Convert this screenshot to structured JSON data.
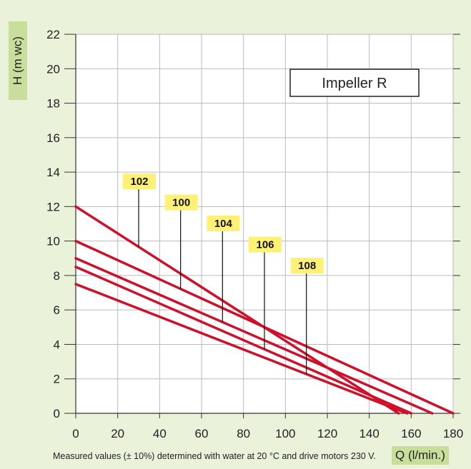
{
  "chart_data": {
    "type": "line",
    "title": "Impeller R",
    "xlabel": "Q (l/min.)",
    "ylabel": "H (m wc)",
    "xlim": [
      0,
      180
    ],
    "ylim": [
      0,
      22
    ],
    "x_ticks": [
      0,
      20,
      40,
      60,
      80,
      100,
      120,
      140,
      160,
      180
    ],
    "y_ticks": [
      0,
      2,
      4,
      6,
      8,
      10,
      12,
      14,
      16,
      18,
      20,
      22
    ],
    "grid": true,
    "colors": {
      "line": "#d0102a",
      "flag": "#fff176",
      "background": "#eaf2d9",
      "label_bg": "#c8df9c"
    },
    "series": [
      {
        "name": "102",
        "x": [
          0,
          154
        ],
        "y": [
          12,
          0
        ],
        "label_x": 30
      },
      {
        "name": "100",
        "x": [
          0,
          180
        ],
        "y": [
          10,
          0
        ],
        "label_x": 50
      },
      {
        "name": "104",
        "x": [
          0,
          170
        ],
        "y": [
          9,
          0
        ],
        "label_x": 70
      },
      {
        "name": "106",
        "x": [
          0,
          160
        ],
        "y": [
          8.5,
          0
        ],
        "label_x": 90
      },
      {
        "name": "108",
        "x": [
          0,
          158
        ],
        "y": [
          7.5,
          0
        ],
        "label_x": 110
      }
    ]
  },
  "footnote": "Measured values (± 10%) determined with water at 20 °C and drive motors 230 V."
}
